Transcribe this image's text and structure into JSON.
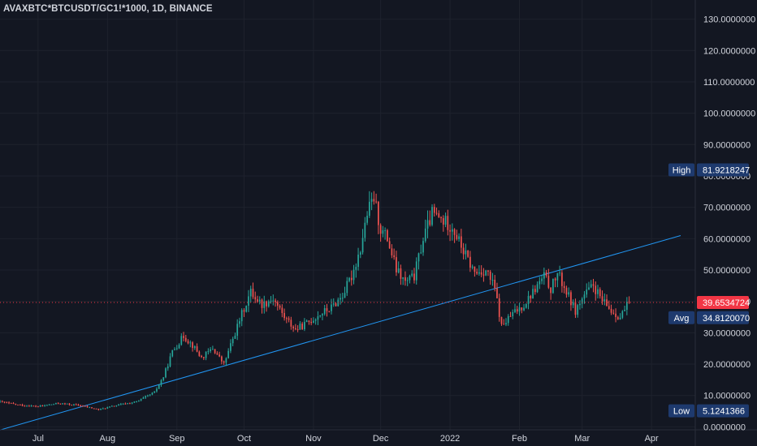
{
  "title": "AVAXBTC*BTCUSDT/GC1!*1000, 1D, BINANCE",
  "colors": {
    "background": "#131722",
    "grid": "#1e222d",
    "up": "#26a69a",
    "down": "#ef5350",
    "trendline": "#2196f3",
    "price_line": "#f23645",
    "label_bg": "#1e3a6e",
    "axis_text": "#d1d4dc"
  },
  "chart_data": {
    "type": "candlestick",
    "x_ticks": [
      "Jul",
      "Aug",
      "Sep",
      "Oct",
      "Nov",
      "Dec",
      "2022",
      "Feb",
      "Mar",
      "Apr"
    ],
    "y_ticks": [
      "0.0000000",
      "10.0000000",
      "20.0000000",
      "30.0000000",
      "40.0000000",
      "50.0000000",
      "60.0000000",
      "70.0000000",
      "80.0000000",
      "90.0000000",
      "100.0000000",
      "110.0000000",
      "120.0000000",
      "130.0000000"
    ],
    "ylim": [
      -3,
      133
    ],
    "x_range": [
      "2021-06-14",
      "2022-04-14"
    ],
    "last_price": "39.6534724",
    "high": {
      "label": "High",
      "value": "81.9218247"
    },
    "avg": {
      "label": "Avg",
      "value": "34.8120070"
    },
    "low": {
      "label": "Low",
      "value": "5.1241366"
    },
    "trendline": {
      "start": {
        "date": "2021-06-14",
        "value": -1.0
      },
      "end": {
        "date": "2022-04-14",
        "value": 61.0
      }
    },
    "price_path": [
      [
        "2021-06-14",
        8.0
      ],
      [
        "2021-06-22",
        7.0
      ],
      [
        "2021-07-01",
        6.5
      ],
      [
        "2021-07-10",
        7.5
      ],
      [
        "2021-07-20",
        6.8
      ],
      [
        "2021-07-28",
        5.5
      ],
      [
        "2021-08-06",
        7.0
      ],
      [
        "2021-08-14",
        8.0
      ],
      [
        "2021-08-22",
        11.0
      ],
      [
        "2021-08-26",
        16.0
      ],
      [
        "2021-08-30",
        24.0
      ],
      [
        "2021-09-04",
        29.0
      ],
      [
        "2021-09-08",
        26.0
      ],
      [
        "2021-09-12",
        22.0
      ],
      [
        "2021-09-17",
        25.0
      ],
      [
        "2021-09-22",
        20.0
      ],
      [
        "2021-09-25",
        26.0
      ],
      [
        "2021-09-30",
        36.0
      ],
      [
        "2021-10-04",
        43.0
      ],
      [
        "2021-10-09",
        39.0
      ],
      [
        "2021-10-14",
        41.0
      ],
      [
        "2021-10-19",
        35.0
      ],
      [
        "2021-10-24",
        31.0
      ],
      [
        "2021-10-29",
        33.0
      ],
      [
        "2021-11-04",
        36.0
      ],
      [
        "2021-11-09",
        38.0
      ],
      [
        "2021-11-14",
        42.0
      ],
      [
        "2021-11-18",
        48.0
      ],
      [
        "2021-11-22",
        57.0
      ],
      [
        "2021-11-25",
        68.0
      ],
      [
        "2021-11-28",
        73.0
      ],
      [
        "2021-12-01",
        63.0
      ],
      [
        "2021-12-04",
        60.0
      ],
      [
        "2021-12-08",
        50.0
      ],
      [
        "2021-12-12",
        46.0
      ],
      [
        "2021-12-16",
        48.0
      ],
      [
        "2021-12-20",
        60.0
      ],
      [
        "2021-12-24",
        68.0
      ],
      [
        "2021-12-28",
        66.0
      ],
      [
        "2022-01-02",
        64.0
      ],
      [
        "2022-01-07",
        56.0
      ],
      [
        "2022-01-12",
        49.0
      ],
      [
        "2022-01-17",
        50.0
      ],
      [
        "2022-01-21",
        44.0
      ],
      [
        "2022-01-24",
        32.0
      ],
      [
        "2022-01-29",
        36.0
      ],
      [
        "2022-02-03",
        39.0
      ],
      [
        "2022-02-08",
        44.0
      ],
      [
        "2022-02-12",
        48.0
      ],
      [
        "2022-02-15",
        44.0
      ],
      [
        "2022-02-18",
        49.0
      ],
      [
        "2022-02-22",
        43.0
      ],
      [
        "2022-02-26",
        37.0
      ],
      [
        "2022-03-02",
        42.0
      ],
      [
        "2022-03-06",
        45.0
      ],
      [
        "2022-03-10",
        40.0
      ],
      [
        "2022-03-14",
        37.0
      ],
      [
        "2022-03-18",
        35.0
      ],
      [
        "2022-03-22",
        39.7
      ]
    ]
  }
}
